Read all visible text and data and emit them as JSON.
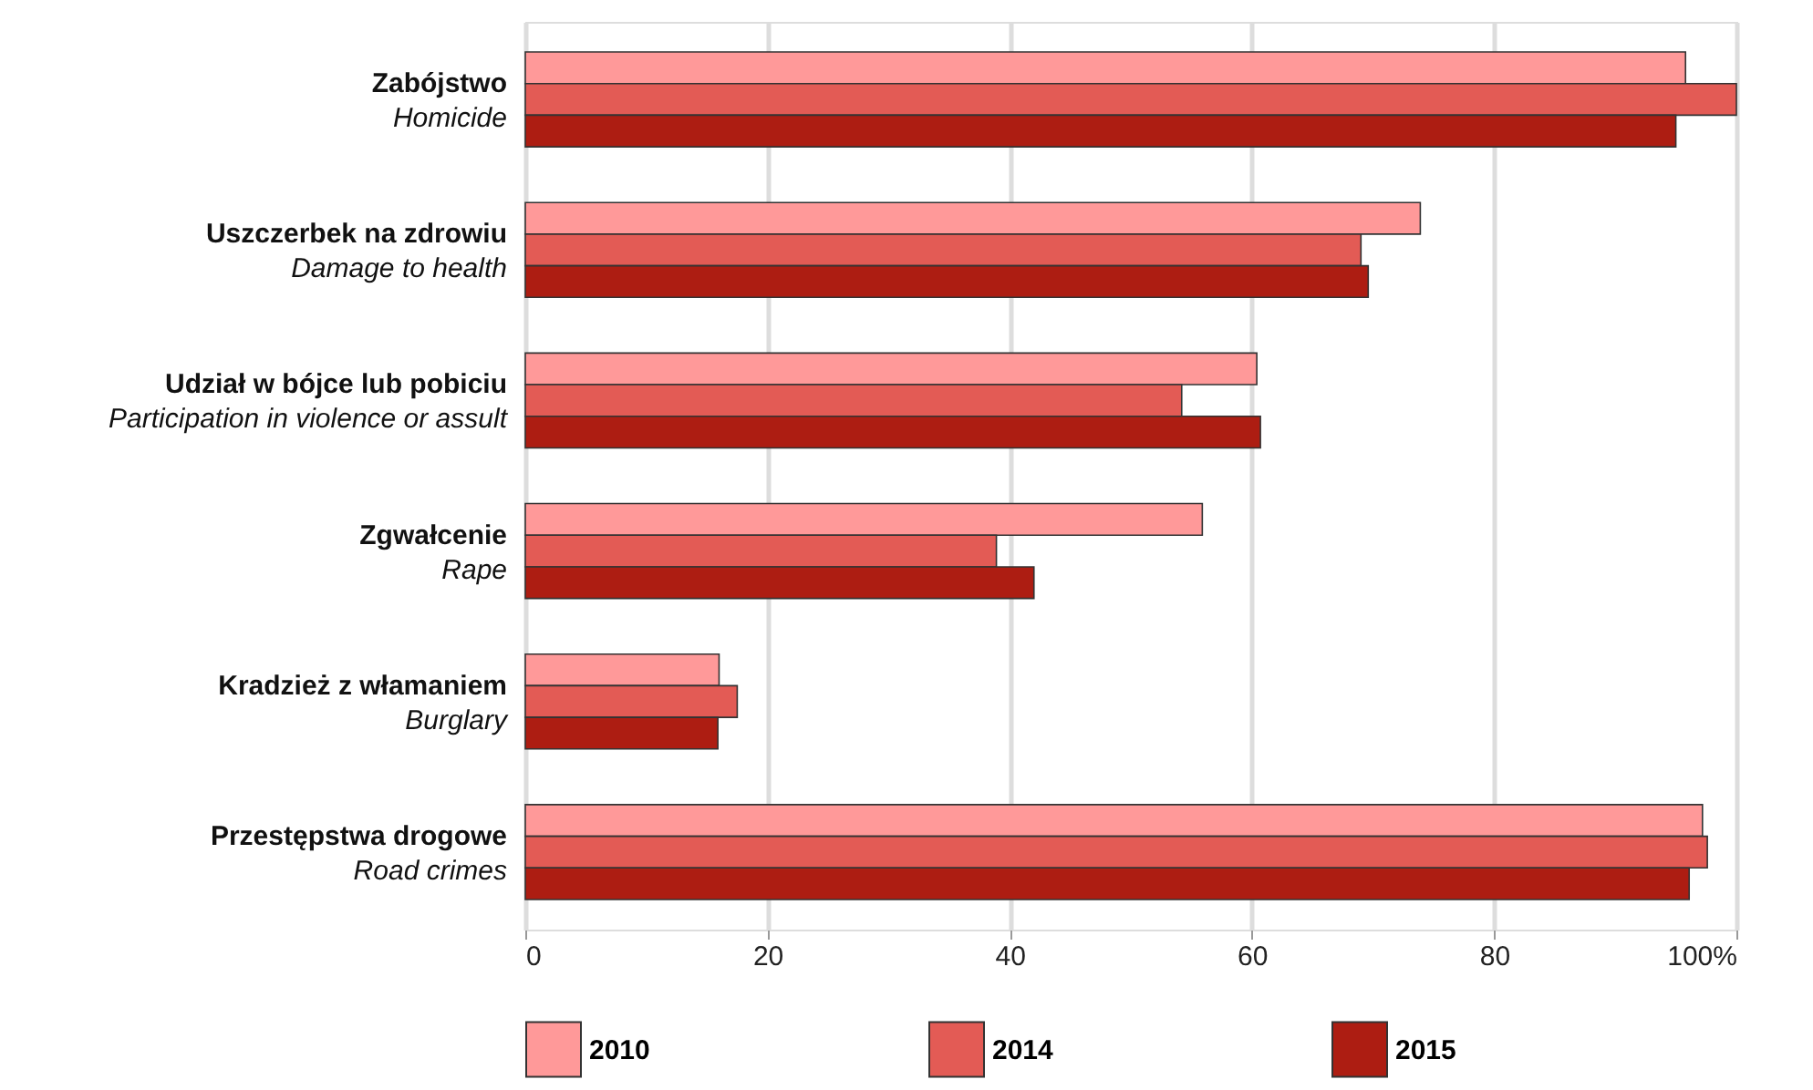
{
  "chart_data": {
    "type": "bar",
    "orientation": "horizontal",
    "categories": [
      "Zabójstwo\nHomicide",
      "Uszczerbek na zdrowiu\nDamage to health",
      "Udział w bójce lub pobiciu\nParticipation in violence or assult",
      "Zgwałcenie\nRape",
      "Kradzież z włamaniem\nBurglary",
      "Przestępstwa drogowe\nRoad crimes"
    ],
    "series": [
      {
        "name": "2010",
        "color": "#ff9999",
        "values": [
          95.8,
          73.9,
          60.4,
          55.9,
          16.0,
          97.2
        ]
      },
      {
        "name": "2014",
        "color": "#e35b55",
        "values": [
          100,
          69.0,
          54.2,
          38.9,
          17.5,
          97.6
        ]
      },
      {
        "name": "2015",
        "color": "#ad1d12",
        "values": [
          95.0,
          69.6,
          60.7,
          42.0,
          15.9,
          96.1
        ]
      }
    ],
    "xlim": [
      0,
      100
    ],
    "xticks": [
      0,
      20,
      40,
      60,
      80,
      {
        "value": 100,
        "label": "100%"
      }
    ],
    "grid": "x",
    "legend": "bottom"
  }
}
